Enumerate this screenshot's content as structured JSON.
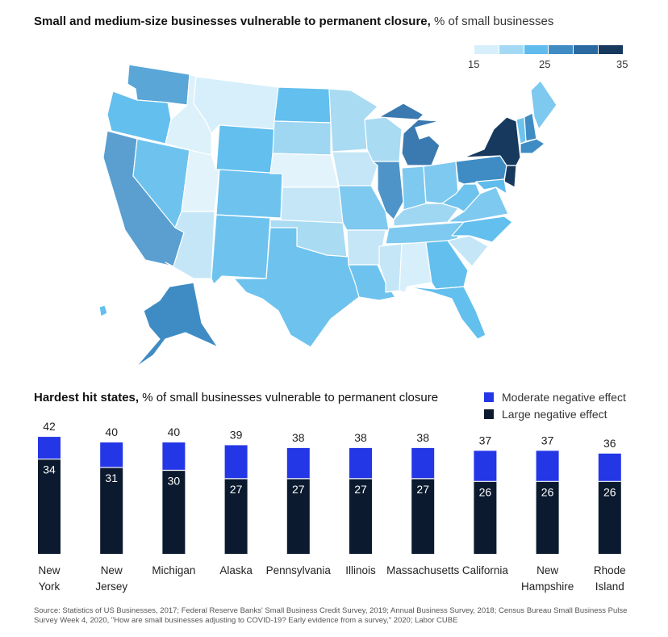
{
  "map": {
    "title_bold": "Small and medium-size businesses vulnerable to permanent closure,",
    "title_light": " % of small businesses",
    "scale_labels": [
      "15",
      "25",
      "35"
    ],
    "scale_colors": [
      "#d7effa",
      "#a4d9f4",
      "#5fbcec",
      "#3f8cc4",
      "#2a6aa0",
      "#17395e"
    ],
    "state_colors": {
      "WA": "#5aa6d7",
      "OR": "#62bfee",
      "CA": "#5a9fd0",
      "NV": "#6ec3ee",
      "ID": "#ddf1fb",
      "MT": "#d7effb",
      "WY": "#62bfee",
      "UT": "#e3f3fb",
      "AZ": "#c5e6f7",
      "CO": "#6ec3ee",
      "NM": "#6ec3ee",
      "ND": "#62bfee",
      "SD": "#9fd6f2",
      "NE": "#e3f3fb",
      "KS": "#c5e6f7",
      "OK": "#a9dbf3",
      "TX": "#6ec3ee",
      "MN": "#a9dbf3",
      "IA": "#c5e6f7",
      "MO": "#7ec9ef",
      "AR": "#c5e6f7",
      "LA": "#6ec3ee",
      "WI": "#a9dbf3",
      "IL": "#4f94c8",
      "MI": "#3a7ab0",
      "IN": "#7ec9ef",
      "OH": "#7ec9ef",
      "KY": "#9fd6f2",
      "TN": "#7ec9ef",
      "MS": "#c5e6f7",
      "AL": "#d7effb",
      "GA": "#62bfee",
      "FL": "#62bfee",
      "SC": "#c5e6f7",
      "NC": "#62bfee",
      "VA": "#7ec9ef",
      "WV": "#6ec3ee",
      "PA": "#3f8cc4",
      "NY": "#17395e",
      "VT": "#6ec3ee",
      "NH": "#3f8cc4",
      "ME": "#7ec9ef",
      "MA": "#3f8cc4",
      "NJ": "#17395e",
      "MD": "#5fbcec",
      "AK": "#3f8cc4",
      "HI": "#62bfee"
    }
  },
  "bars": {
    "subtitle_bold": "Hardest hit states,",
    "subtitle_light": " % of small businesses vulnerable to permanent closure",
    "legend": [
      {
        "label": "Moderate negative effect",
        "color": "#2437e6"
      },
      {
        "label": "Large negative effect",
        "color": "#0b1a2e"
      }
    ]
  },
  "chart_data": {
    "type": "bar",
    "stacked": true,
    "categories": [
      "New York",
      "New Jersey",
      "Michigan",
      "Alaska",
      "Pennsylvania",
      "Illinois",
      "Massachusetts",
      "California",
      "New Hampshire",
      "Rhode Island"
    ],
    "category_lines": [
      [
        "New",
        "York"
      ],
      [
        "New",
        "Jersey"
      ],
      [
        "Michigan"
      ],
      [
        "Alaska"
      ],
      [
        "Pennsylvania"
      ],
      [
        "Illinois"
      ],
      [
        "Massachusetts"
      ],
      [
        "California"
      ],
      [
        "New",
        "Hampshire"
      ],
      [
        "Rhode",
        "Island"
      ]
    ],
    "totals": [
      42,
      40,
      40,
      39,
      38,
      38,
      38,
      37,
      37,
      36
    ],
    "series": [
      {
        "name": "Large negative effect",
        "values": [
          34,
          31,
          30,
          27,
          27,
          27,
          27,
          26,
          26,
          26
        ]
      },
      {
        "name": "Moderate negative effect",
        "values": [
          8,
          9,
          10,
          12,
          11,
          11,
          11,
          11,
          11,
          10
        ]
      }
    ],
    "ylim": [
      0,
      42
    ]
  },
  "source": "Source: Statistics of US Businesses, 2017; Federal Reserve Banks' Small Business Credit Survey, 2019; Annual Business Survey, 2018; Census Bureau Small Business Pulse Survey Week 4, 2020, \"How are small businesses adjusting to COVID-19? Early evidence from a survey,\" 2020; Labor CUBE"
}
